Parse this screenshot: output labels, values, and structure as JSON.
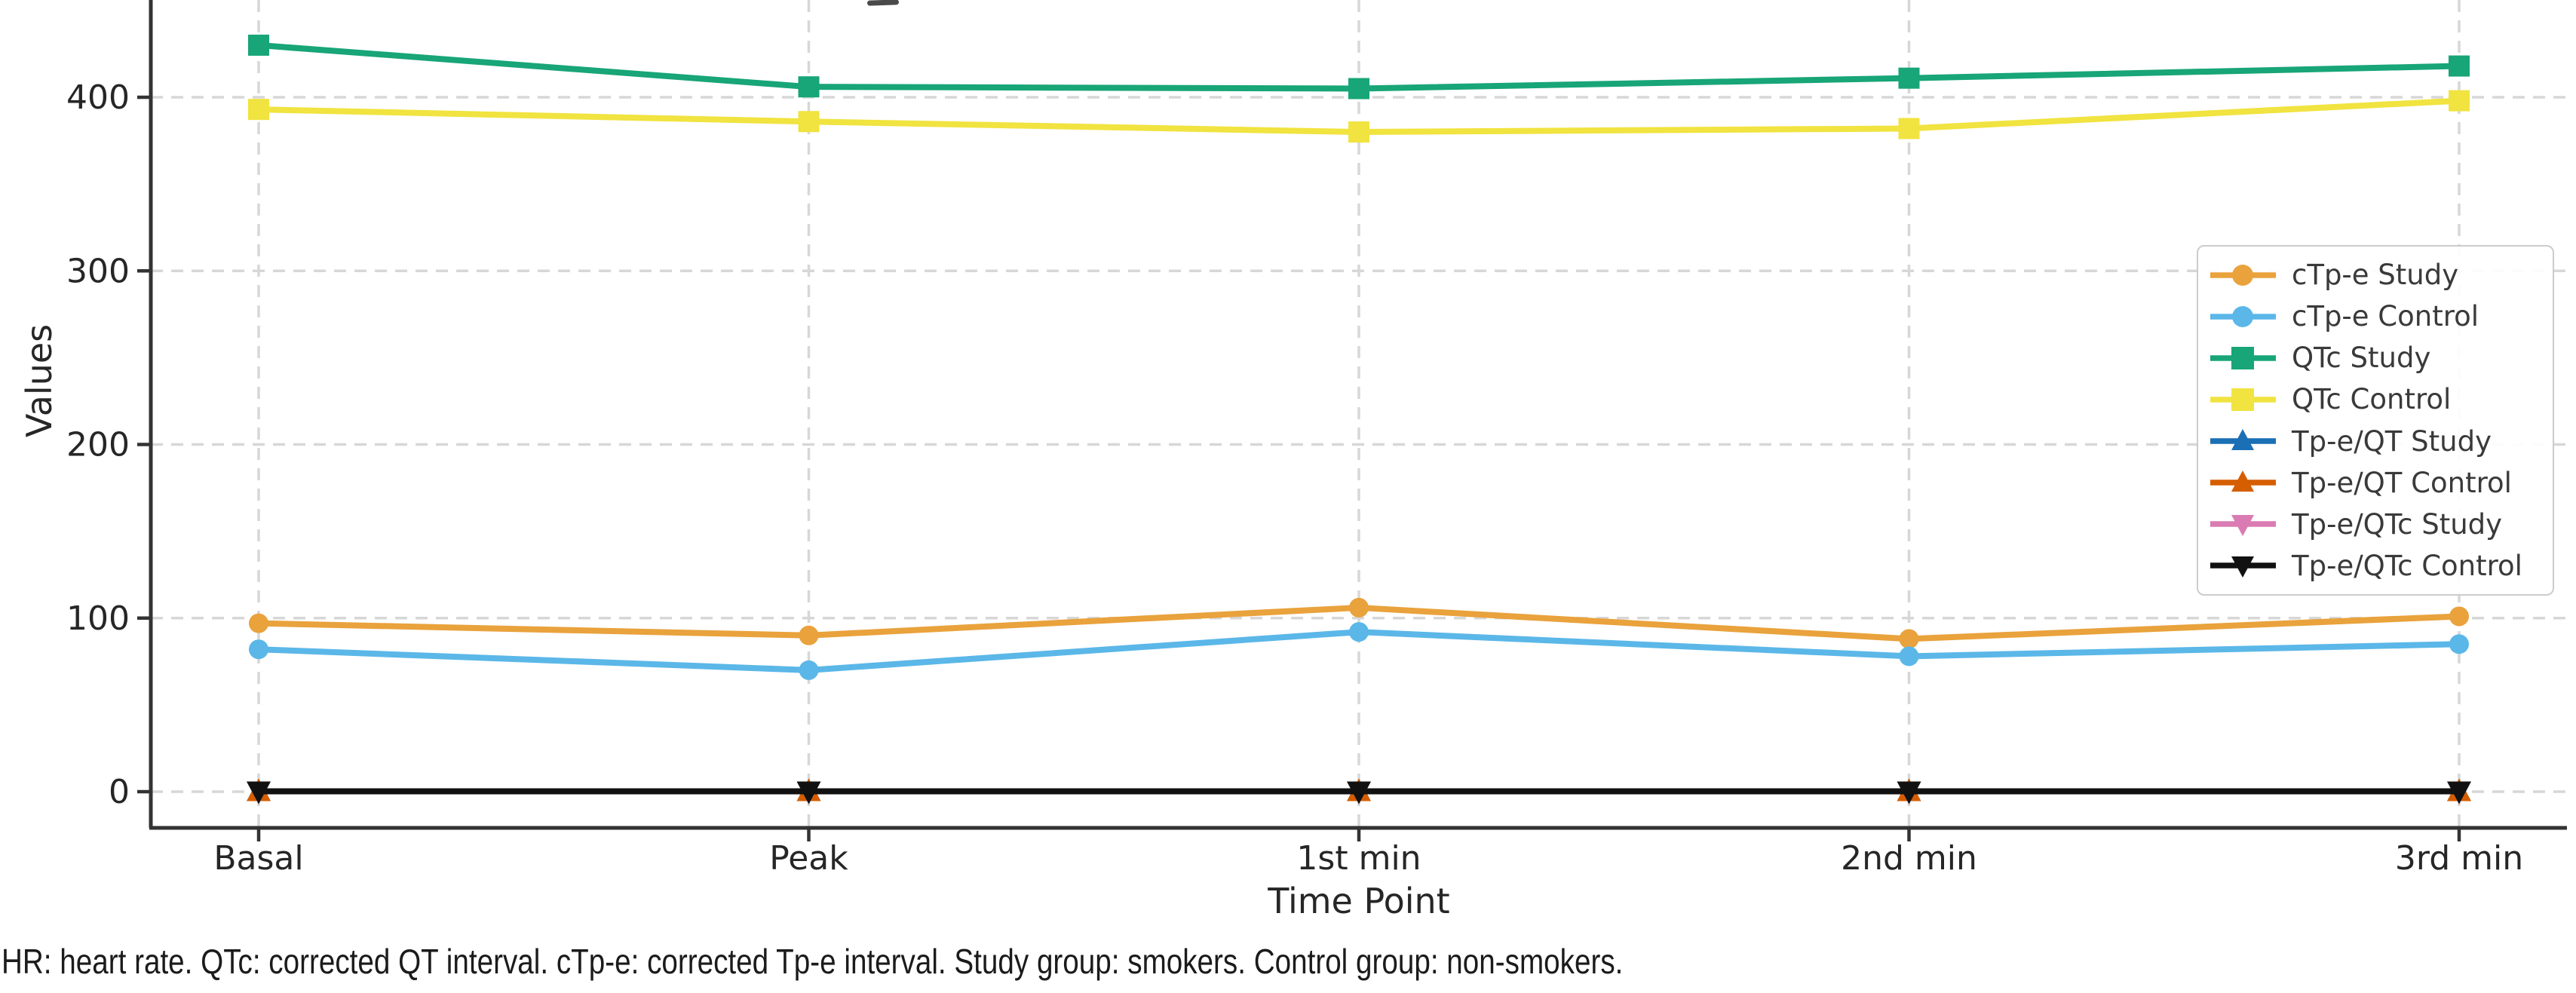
{
  "chart_data": {
    "type": "line",
    "title_cropped": true,
    "xlabel": "Time Point",
    "ylabel": "Values",
    "categories": [
      "Basal",
      "Peak",
      "1st min",
      "2nd min",
      "3rd min"
    ],
    "yticks": [
      0,
      100,
      200,
      300,
      400
    ],
    "ylim": [
      -21,
      456
    ],
    "grid": "dashed-both-axes",
    "legend_position": "center-right",
    "series": [
      {
        "name": "cTp-e Study",
        "color": "#E9A23C",
        "marker": "circle",
        "values": [
          97,
          90,
          106,
          88,
          101
        ]
      },
      {
        "name": "cTp-e Control",
        "color": "#5BB7E8",
        "marker": "circle",
        "values": [
          82,
          70,
          92,
          78,
          85
        ]
      },
      {
        "name": "QTc Study",
        "color": "#18A577",
        "marker": "square",
        "values": [
          430,
          406,
          405,
          411,
          418
        ]
      },
      {
        "name": "QTc Control",
        "color": "#F1E340",
        "marker": "square",
        "values": [
          393,
          386,
          380,
          382,
          398
        ]
      },
      {
        "name": "Tp-e/QT Study",
        "color": "#1A6FB5",
        "marker": "triangle-up",
        "values": [
          0.2,
          0.2,
          0.2,
          0.2,
          0.2
        ]
      },
      {
        "name": "Tp-e/QT Control",
        "color": "#D55E00",
        "marker": "triangle-up",
        "values": [
          0.2,
          0.2,
          0.2,
          0.2,
          0.2
        ]
      },
      {
        "name": "Tp-e/QTc Study",
        "color": "#DB7BB3",
        "marker": "triangle-down",
        "values": [
          0.2,
          0.2,
          0.2,
          0.2,
          0.2
        ]
      },
      {
        "name": "Tp-e/QTc Control",
        "color": "#111111",
        "marker": "triangle-down",
        "values": [
          0.2,
          0.2,
          0.2,
          0.2,
          0.2
        ]
      }
    ]
  },
  "footnote": "HR: heart rate. QTc: corrected QT interval. cTp-e: corrected Tp-e interval. Study group: smokers. Control group: non-smokers."
}
